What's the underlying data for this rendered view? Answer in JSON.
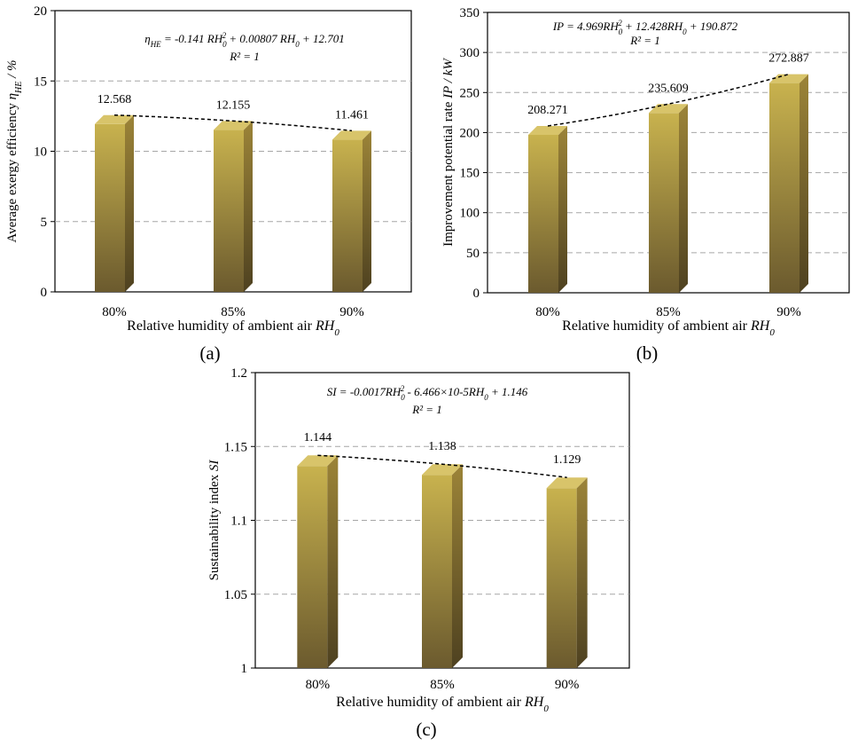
{
  "chart_data": [
    {
      "type": "bar",
      "panel_label": "(a)",
      "categories": [
        "80%",
        "85%",
        "90%"
      ],
      "values": [
        12.568,
        12.155,
        11.461
      ],
      "value_labels": [
        "12.568",
        "12.155",
        "11.461"
      ],
      "ylim": [
        0,
        20
      ],
      "yticks": [
        0,
        5,
        10,
        15,
        20
      ],
      "ytick_labels": [
        "0",
        "5",
        "10",
        "15",
        "20"
      ],
      "ylabel": "Average exergy efficiency ηHE / %",
      "ylabel_parts": {
        "pre": "Average exergy efficiency ",
        "var": "η",
        "sub": "HE",
        "post": " / %"
      },
      "xlabel": "Relative humidity of ambient air RH0",
      "xlabel_parts": {
        "pre": "Relative humidity of ambient air ",
        "var": "RH",
        "sub": "0"
      },
      "equation": "ηHE = -0.141 RH0² + 0.00807 RH0 + 12.701",
      "equation_parts": {
        "lhs": "η",
        "lhs_sub": "HE",
        "rhs1": " = -0.141 RH",
        "sub1": "0",
        "sup1": "2",
        "rhs2": " + 0.00807 RH",
        "sub2": "0",
        "rhs3": " + 12.701"
      },
      "r2": "R² = 1",
      "grid": true
    },
    {
      "type": "bar",
      "panel_label": "(b)",
      "categories": [
        "80%",
        "85%",
        "90%"
      ],
      "values": [
        208.271,
        235.609,
        272.887
      ],
      "value_labels": [
        "208.271",
        "235.609",
        "272.887"
      ],
      "ylim": [
        0,
        350
      ],
      "yticks": [
        0,
        50,
        100,
        150,
        200,
        250,
        300,
        350
      ],
      "ytick_labels": [
        "0",
        "50",
        "100",
        "150",
        "200",
        "250",
        "300",
        "350"
      ],
      "ylabel": "Improvement potential rate IP / kW",
      "ylabel_parts": {
        "pre": "Improvement potential rate ",
        "var": "IP",
        "sub": "",
        "post": " / kW"
      },
      "xlabel": "Relative humidity of ambient air RH0",
      "xlabel_parts": {
        "pre": "Relative humidity of ambient air ",
        "var": "RH",
        "sub": "0"
      },
      "equation": "IP = 4.969RH0² + 12.428RH0 + 190.872",
      "equation_parts": {
        "lhs": "IP",
        "lhs_sub": "",
        "rhs1": " = 4.969RH",
        "sub1": "0",
        "sup1": "2",
        "rhs2": " + 12.428RH",
        "sub2": "0",
        "rhs3": " + 190.872"
      },
      "r2": "R² = 1",
      "grid": true
    },
    {
      "type": "bar",
      "panel_label": "(c)",
      "categories": [
        "80%",
        "85%",
        "90%"
      ],
      "values": [
        1.144,
        1.138,
        1.129
      ],
      "value_labels": [
        "1.144",
        "1.138",
        "1.129"
      ],
      "ylim": [
        1,
        1.2
      ],
      "yticks": [
        1,
        1.05,
        1.1,
        1.15,
        1.2
      ],
      "ytick_labels": [
        "1",
        "1.05",
        "1.1",
        "1.15",
        "1.2"
      ],
      "ylabel": "Sustainability index SI",
      "ylabel_parts": {
        "pre": "Sustainability index ",
        "var": "SI",
        "sub": "",
        "post": ""
      },
      "xlabel": "Relative humidity of ambient air RH0",
      "xlabel_parts": {
        "pre": "Relative humidity of ambient air ",
        "var": "RH",
        "sub": "0"
      },
      "equation": "SI = -0.0017RH0² - 6.466×10-5RH0 + 1.146",
      "equation_parts": {
        "lhs": "SI",
        "lhs_sub": "",
        "rhs1": " = -0.0017RH",
        "sub1": "0",
        "sup1": "2",
        "rhs2": " - 6.466×10-5RH",
        "sub2": "0",
        "rhs3": " + 1.146"
      },
      "r2": "R² = 1",
      "grid": true
    }
  ],
  "colors": {
    "bar_front_top": "#c8b24e",
    "bar_front_bottom": "#6b5a2e",
    "bar_side": "#7a6630",
    "bar_top": "#d8c46a",
    "grid": "#a6a6a6",
    "frame": "#000000"
  }
}
